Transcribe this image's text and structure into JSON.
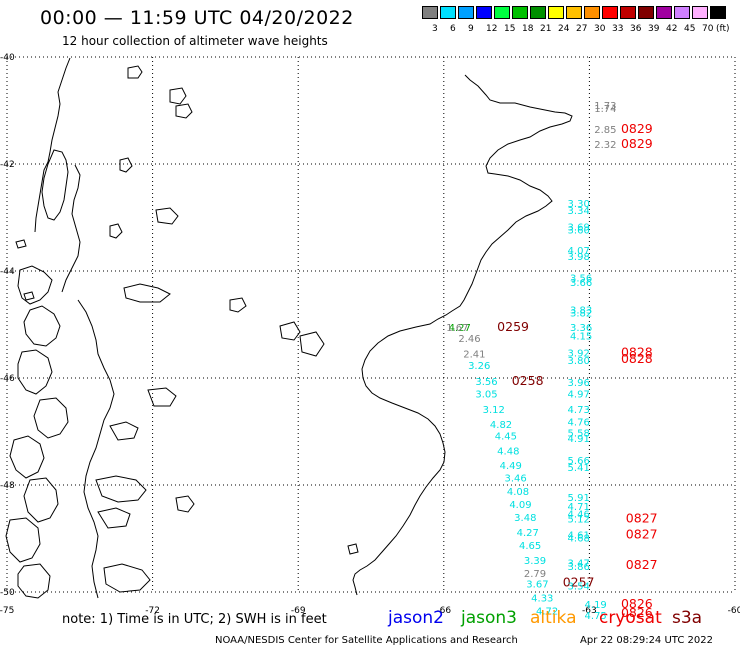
{
  "title": "00:00 — 11:59 UTC 04/20/2022",
  "subtitle": "12 hour collection of altimeter wave heights",
  "scale": {
    "unit_label": "(ft)",
    "boxes": [
      {
        "color": "#808080",
        "label": "3"
      },
      {
        "color": "#00e0ff",
        "label": "6"
      },
      {
        "color": "#00a0ff",
        "label": "9"
      },
      {
        "color": "#0000ff",
        "label": "12"
      },
      {
        "color": "#00ff40",
        "label": "15"
      },
      {
        "color": "#00c000",
        "label": "18"
      },
      {
        "color": "#009000",
        "label": "21"
      },
      {
        "color": "#ffff00",
        "label": "24"
      },
      {
        "color": "#ffc000",
        "label": "27"
      },
      {
        "color": "#ff9000",
        "label": "30"
      },
      {
        "color": "#ff0000",
        "label": "33"
      },
      {
        "color": "#c00000",
        "label": "36"
      },
      {
        "color": "#800000",
        "label": "39"
      },
      {
        "color": "#a000a0",
        "label": "42"
      },
      {
        "color": "#d080ff",
        "label": "45"
      },
      {
        "color": "#ffb0ff",
        "label": "70"
      },
      {
        "color": "#000000",
        "label": ""
      }
    ]
  },
  "axes": {
    "lon_ticks": [
      "-75",
      "-72",
      "-69",
      "-66",
      "-63",
      "-60"
    ],
    "lat_ticks": [
      "-40",
      "-42",
      "-44",
      "-46",
      "-48",
      "-50"
    ]
  },
  "colors": {
    "gray": "#808080",
    "cyan": "#00e0e0",
    "red": "#ee0000",
    "darkred": "#800000",
    "green": "#00a000"
  },
  "observations": [
    {
      "lon": -62.9,
      "lat": -40.97,
      "v": "1.73",
      "c": "gray"
    },
    {
      "lon": -62.9,
      "lat": -41.03,
      "v": "1.74",
      "c": "gray"
    },
    {
      "lon": -62.9,
      "lat": -41.42,
      "v": "2.85",
      "c": "gray"
    },
    {
      "lon": -62.9,
      "lat": -41.7,
      "v": "2.32",
      "c": "gray"
    },
    {
      "lon": -62.35,
      "lat": -41.42,
      "v": "0829",
      "c": "red"
    },
    {
      "lon": -62.35,
      "lat": -41.7,
      "v": "0829",
      "c": "red"
    },
    {
      "lon": -63.45,
      "lat": -42.8,
      "v": "3.30",
      "c": "cyan"
    },
    {
      "lon": -63.45,
      "lat": -42.93,
      "v": "3.34",
      "c": "cyan"
    },
    {
      "lon": -63.45,
      "lat": -43.24,
      "v": "3.69",
      "c": "cyan"
    },
    {
      "lon": -63.45,
      "lat": -43.3,
      "v": "3.60",
      "c": "cyan"
    },
    {
      "lon": -63.45,
      "lat": -43.68,
      "v": "4.07",
      "c": "cyan"
    },
    {
      "lon": -63.45,
      "lat": -43.79,
      "v": "3.98",
      "c": "cyan"
    },
    {
      "lon": -63.4,
      "lat": -44.2,
      "v": "3.56",
      "c": "cyan"
    },
    {
      "lon": -63.4,
      "lat": -44.28,
      "v": "3.66",
      "c": "cyan"
    },
    {
      "lon": -63.4,
      "lat": -44.79,
      "v": "3.83",
      "c": "cyan"
    },
    {
      "lon": -63.4,
      "lat": -44.85,
      "v": "3.82",
      "c": "cyan"
    },
    {
      "lon": -63.4,
      "lat": -45.12,
      "v": "3.36",
      "c": "cyan"
    },
    {
      "lon": -63.4,
      "lat": -45.28,
      "v": "4.15",
      "c": "cyan"
    },
    {
      "lon": -63.45,
      "lat": -45.6,
      "v": "3.92",
      "c": "cyan"
    },
    {
      "lon": -63.45,
      "lat": -45.74,
      "v": "3.80",
      "c": "cyan"
    },
    {
      "lon": -62.35,
      "lat": -45.6,
      "v": "0828",
      "c": "red"
    },
    {
      "lon": -62.35,
      "lat": -45.72,
      "v": "0828",
      "c": "red"
    },
    {
      "lon": -65.9,
      "lat": -45.12,
      "v": "4.27",
      "c": "green"
    },
    {
      "lon": -65.95,
      "lat": -45.12,
      "v": "1.67",
      "c": "gray"
    },
    {
      "lon": -65.7,
      "lat": -45.33,
      "v": "2.46",
      "c": "gray"
    },
    {
      "lon": -65.6,
      "lat": -45.62,
      "v": "2.41",
      "c": "gray"
    },
    {
      "lon": -64.9,
      "lat": -45.12,
      "v": "0259",
      "c": "darkred"
    },
    {
      "lon": -65.5,
      "lat": -45.83,
      "v": "3.26",
      "c": "cyan"
    },
    {
      "lon": -65.35,
      "lat": -46.13,
      "v": "3.56",
      "c": "cyan"
    },
    {
      "lon": -64.6,
      "lat": -46.13,
      "v": "0258",
      "c": "darkred"
    },
    {
      "lon": -63.45,
      "lat": -46.15,
      "v": "3.96",
      "c": "cyan"
    },
    {
      "lon": -63.45,
      "lat": -46.36,
      "v": "4.97",
      "c": "cyan"
    },
    {
      "lon": -65.35,
      "lat": -46.36,
      "v": "3.05",
      "c": "cyan"
    },
    {
      "lon": -63.45,
      "lat": -46.65,
      "v": "4.73",
      "c": "cyan"
    },
    {
      "lon": -65.2,
      "lat": -46.65,
      "v": "3.12",
      "c": "cyan"
    },
    {
      "lon": -63.45,
      "lat": -46.89,
      "v": "4.76",
      "c": "cyan"
    },
    {
      "lon": -65.05,
      "lat": -46.93,
      "v": "4.82",
      "c": "cyan"
    },
    {
      "lon": -63.45,
      "lat": -47.09,
      "v": "5.58",
      "c": "cyan"
    },
    {
      "lon": -63.45,
      "lat": -47.2,
      "v": "4.91",
      "c": "cyan"
    },
    {
      "lon": -64.95,
      "lat": -47.15,
      "v": "4.45",
      "c": "cyan"
    },
    {
      "lon": -64.9,
      "lat": -47.43,
      "v": "4.48",
      "c": "cyan"
    },
    {
      "lon": -63.45,
      "lat": -47.61,
      "v": "5.66",
      "c": "cyan"
    },
    {
      "lon": -63.45,
      "lat": -47.74,
      "v": "5.41",
      "c": "cyan"
    },
    {
      "lon": -64.85,
      "lat": -47.7,
      "v": "4.49",
      "c": "cyan"
    },
    {
      "lon": -64.75,
      "lat": -47.93,
      "v": "3.46",
      "c": "cyan"
    },
    {
      "lon": -64.7,
      "lat": -48.19,
      "v": "4.08",
      "c": "cyan"
    },
    {
      "lon": -63.45,
      "lat": -48.3,
      "v": "5.91",
      "c": "cyan"
    },
    {
      "lon": -64.65,
      "lat": -48.43,
      "v": "4.09",
      "c": "cyan"
    },
    {
      "lon": -63.45,
      "lat": -48.47,
      "v": "4.71",
      "c": "cyan"
    },
    {
      "lon": -63.45,
      "lat": -48.61,
      "v": "4.46",
      "c": "cyan"
    },
    {
      "lon": -63.45,
      "lat": -48.7,
      "v": "5.12",
      "c": "cyan"
    },
    {
      "lon": -64.55,
      "lat": -48.67,
      "v": "3.48",
      "c": "cyan"
    },
    {
      "lon": -62.25,
      "lat": -48.7,
      "v": "0827",
      "c": "red"
    },
    {
      "lon": -64.5,
      "lat": -48.95,
      "v": "4.27",
      "c": "cyan"
    },
    {
      "lon": -63.45,
      "lat": -49.0,
      "v": "4.61",
      "c": "cyan"
    },
    {
      "lon": -63.45,
      "lat": -49.06,
      "v": "4.68",
      "c": "cyan"
    },
    {
      "lon": -62.25,
      "lat": -49.0,
      "v": "0827",
      "c": "red"
    },
    {
      "lon": -64.45,
      "lat": -49.2,
      "v": "4.65",
      "c": "cyan"
    },
    {
      "lon": -64.35,
      "lat": -49.48,
      "v": "3.39",
      "c": "cyan"
    },
    {
      "lon": -63.45,
      "lat": -49.52,
      "v": "3.47",
      "c": "cyan"
    },
    {
      "lon": -63.45,
      "lat": -49.59,
      "v": "3.86",
      "c": "cyan"
    },
    {
      "lon": -62.25,
      "lat": -49.57,
      "v": "0827",
      "c": "red"
    },
    {
      "lon": -64.35,
      "lat": -49.72,
      "v": "2.79",
      "c": "gray"
    },
    {
      "lon": -64.3,
      "lat": -49.92,
      "v": "3.67",
      "c": "cyan"
    },
    {
      "lon": -63.55,
      "lat": -49.9,
      "v": "0257",
      "c": "darkred"
    },
    {
      "lon": -63.45,
      "lat": -49.95,
      "v": "3.54",
      "c": "cyan"
    },
    {
      "lon": -64.2,
      "lat": -50.18,
      "v": "4.33",
      "c": "cyan"
    },
    {
      "lon": -63.1,
      "lat": -50.3,
      "v": "4.19",
      "c": "cyan"
    },
    {
      "lon": -62.35,
      "lat": -50.3,
      "v": "0826",
      "c": "red"
    },
    {
      "lon": -64.1,
      "lat": -50.42,
      "v": "4.72",
      "c": "cyan"
    },
    {
      "lon": -63.1,
      "lat": -50.5,
      "v": "4.75",
      "c": "cyan"
    },
    {
      "lon": -62.35,
      "lat": -50.47,
      "v": "0826",
      "c": "red"
    }
  ],
  "footer": {
    "note": "note: 1) Time is in UTC; 2) SWH is in feet",
    "satellites": [
      {
        "name": "jason2",
        "color": "#0000ee"
      },
      {
        "name": "jason3",
        "color": "#00a000"
      },
      {
        "name": "altika",
        "color": "#ff9900"
      },
      {
        "name": "cryosat",
        "color": "#ee0000"
      },
      {
        "name": "s3a",
        "color": "#800000"
      }
    ],
    "credit": "NOAA/NESDIS Center for Satellite Applications and Research",
    "generated": "Apr 22 08:29:24 UTC 2022"
  }
}
